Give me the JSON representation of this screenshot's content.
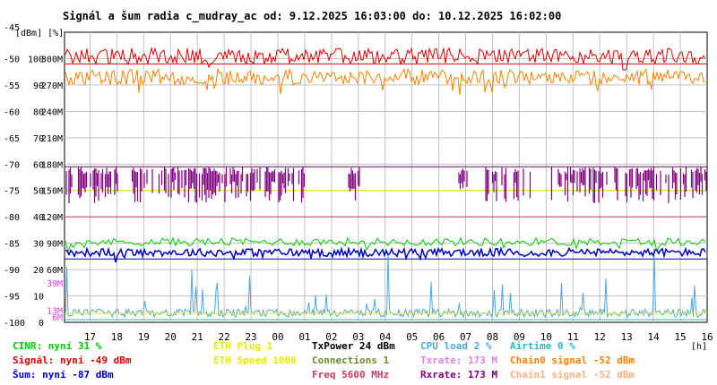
{
  "chart_data": {
    "type": "line",
    "title": "Signál a šum radia c_mudray_ac od: 9.12.2025 16:03:00 do: 10.12.2025 16:02:00",
    "y_axis_units": "[dBm]  [%]",
    "x_unit": "[h]",
    "x_ticks": [
      "17",
      "18",
      "19",
      "20",
      "21",
      "22",
      "23",
      "00",
      "01",
      "02",
      "03",
      "04",
      "05",
      "06",
      "07",
      "08",
      "09",
      "10",
      "11",
      "12",
      "13",
      "14",
      "15",
      "16"
    ],
    "x_range": [
      16.05,
      40.0
    ],
    "y_range_dbm": [
      -100,
      -45
    ],
    "y_ticks": [
      {
        "dbm": -45,
        "pct": "",
        "rate": ""
      },
      {
        "dbm": -50,
        "pct": "100",
        "rate": "300M"
      },
      {
        "dbm": -55,
        "pct": "90",
        "rate": "270M"
      },
      {
        "dbm": -60,
        "pct": "80",
        "rate": "240M"
      },
      {
        "dbm": -65,
        "pct": "70",
        "rate": "210M"
      },
      {
        "dbm": -70,
        "pct": "60",
        "rate": "180M"
      },
      {
        "dbm": -75,
        "pct": "50",
        "rate": "150M"
      },
      {
        "dbm": -80,
        "pct": "40",
        "rate": "120M"
      },
      {
        "dbm": -85,
        "pct": "30",
        "rate": "90M"
      },
      {
        "dbm": -90,
        "pct": "20",
        "rate": "60M"
      },
      {
        "dbm": -95,
        "pct": "10",
        "rate": ""
      },
      {
        "dbm": -100,
        "pct": "0",
        "rate": ""
      }
    ],
    "freq_axis_labels": [
      {
        "text": "39M",
        "dbm": -92.5
      },
      {
        "text": "13M",
        "dbm": -97.7
      },
      {
        "text": "6M",
        "dbm": -99.0
      }
    ],
    "series": [
      {
        "name": "Signál",
        "color": "#e00000",
        "dbm_band": [
          -51,
          -48
        ]
      },
      {
        "name": "Chain0 signal",
        "color": "#ff8000",
        "dbm_band": [
          -55,
          -51
        ]
      },
      {
        "name": "Rxrate",
        "color": "#800080",
        "rate_mbps": 173
      },
      {
        "name": "ETH Speed",
        "color": "#e8e800",
        "value": -75
      },
      {
        "name": "Freq",
        "color": "#c04060",
        "value": -80
      },
      {
        "name": "CINR",
        "color": "#00cc00",
        "dbm_band": [
          -86,
          -84
        ]
      },
      {
        "name": "Šum",
        "color": "#0000c0",
        "dbm_band": [
          -88,
          -86
        ]
      },
      {
        "name": "CPU load",
        "color": "#4ca6e6",
        "dbm_band": [
          -99,
          -95
        ]
      }
    ],
    "legend": {
      "col1": [
        {
          "text": "CINR: nyní 31 %",
          "color": "#00cc00"
        },
        {
          "text": "Signál: nyní -49 dBm",
          "color": "#e00000"
        },
        {
          "text": "Šum: nyní -87 dBm",
          "color": "#0000c0"
        }
      ],
      "col2": [
        {
          "text": "ETH Plug 1",
          "color": "#e8e800"
        },
        {
          "text": "ETH Speed 1000",
          "color": "#e8e800"
        }
      ],
      "col3": [
        {
          "text": "TxPower 24 dBm",
          "color": "#000000"
        },
        {
          "text": "Connections 1",
          "color": "#6b8e23"
        },
        {
          "text": "Freq 5600 MHz",
          "color": "#c04060"
        }
      ],
      "col4": [
        {
          "text": "CPU load 2 %",
          "color": "#4ca6e6"
        },
        {
          "text": "Txrate: 173 M",
          "color": "#e080e0"
        },
        {
          "text": "Rxrate: 173 M",
          "color": "#800080"
        }
      ],
      "col5": [
        {
          "text": "Airtime 0 %",
          "color": "#20c0c0"
        },
        {
          "text": "Chain0 signal -52 dBm",
          "color": "#ff8000"
        },
        {
          "text": "Chain1 signal -52 dBm",
          "color": "#ffb080"
        }
      ]
    }
  }
}
